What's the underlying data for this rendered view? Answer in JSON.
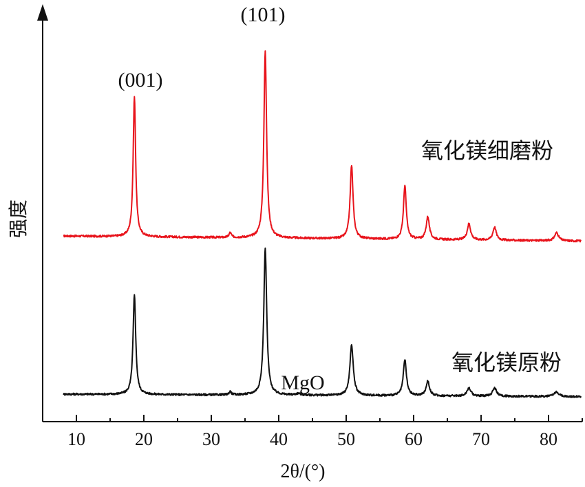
{
  "chart_data": {
    "type": "line",
    "title": "",
    "xlabel": "2θ/(°)",
    "ylabel": "强度",
    "xlim": [
      5,
      85
    ],
    "xticks": [
      10,
      20,
      30,
      40,
      50,
      60,
      70,
      80
    ],
    "yticks_shown": false,
    "grid": false,
    "legend": "none",
    "annotations": [
      {
        "text": "(001)",
        "x": 18.6,
        "series": "氧化镁细磨粉"
      },
      {
        "text": "(101)",
        "x": 38.0,
        "series": "氧化镁细磨粉"
      },
      {
        "text": "MgO",
        "x": 42.9,
        "series": "氧化镁原粉"
      }
    ],
    "series": [
      {
        "name": "氧化镁细磨粉",
        "color": "#e8141c",
        "baseline": 1.05,
        "slope": -0.0004,
        "peaks": [
          {
            "x": 18.6,
            "height": 0.86,
            "width": 0.22
          },
          {
            "x": 32.8,
            "height": 0.03,
            "width": 0.2
          },
          {
            "x": 38.0,
            "height": 1.15,
            "width": 0.24
          },
          {
            "x": 50.8,
            "height": 0.45,
            "width": 0.26
          },
          {
            "x": 58.7,
            "height": 0.33,
            "width": 0.25
          },
          {
            "x": 62.1,
            "height": 0.14,
            "width": 0.28
          },
          {
            "x": 68.2,
            "height": 0.1,
            "width": 0.3
          },
          {
            "x": 72.0,
            "height": 0.08,
            "width": 0.3
          },
          {
            "x": 81.2,
            "height": 0.05,
            "width": 0.35
          }
        ]
      },
      {
        "name": "氧化镁原粉",
        "color": "#111111",
        "baseline": 0.08,
        "slope": -0.0002,
        "peaks": [
          {
            "x": 18.6,
            "height": 0.61,
            "width": 0.24
          },
          {
            "x": 32.8,
            "height": 0.02,
            "width": 0.2
          },
          {
            "x": 38.0,
            "height": 0.9,
            "width": 0.26
          },
          {
            "x": 42.9,
            "height": 0.01,
            "width": 0.4
          },
          {
            "x": 50.8,
            "height": 0.31,
            "width": 0.3
          },
          {
            "x": 58.7,
            "height": 0.22,
            "width": 0.28
          },
          {
            "x": 62.1,
            "height": 0.09,
            "width": 0.3
          },
          {
            "x": 68.2,
            "height": 0.05,
            "width": 0.35
          },
          {
            "x": 72.0,
            "height": 0.05,
            "width": 0.35
          },
          {
            "x": 81.2,
            "height": 0.03,
            "width": 0.4
          }
        ]
      }
    ]
  }
}
